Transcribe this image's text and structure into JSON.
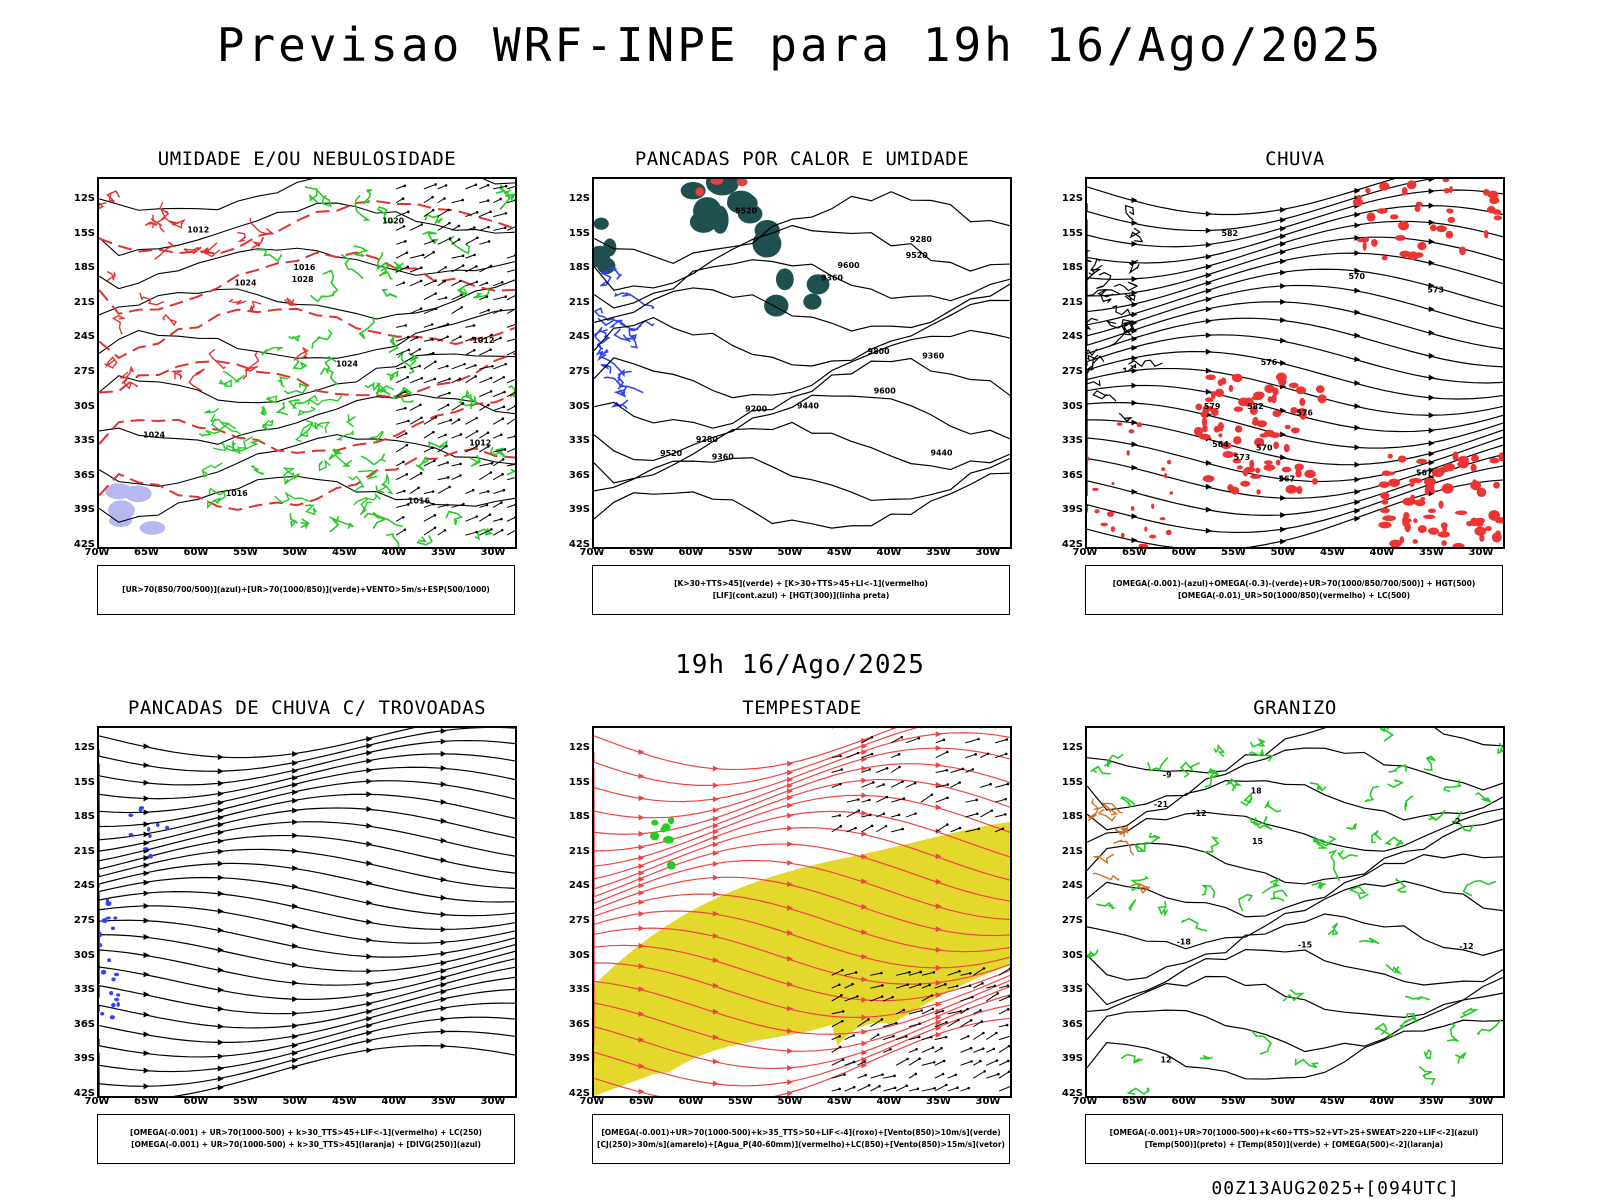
{
  "header": {
    "title": "Previsao WRF-INPE  para 19h 16/Ago/2025"
  },
  "mid_title": "19h 16/Ago/2025",
  "footer": "00Z13AUG2025+[094UTC]",
  "axes": {
    "y_labels": [
      "12S",
      "15S",
      "18S",
      "21S",
      "24S",
      "27S",
      "30S",
      "33S",
      "36S",
      "39S",
      "42S"
    ],
    "x_labels": [
      "70W",
      "65W",
      "60W",
      "55W",
      "50W",
      "45W",
      "40W",
      "35W",
      "30W"
    ]
  },
  "panels": [
    {
      "id": "p1",
      "title": "UMIDADE E/OU NEBULOSIDADE",
      "legend": [
        "[UR>70(850/700/500)](azul)+[UR>70(1000/850)](verde)+VENTO>5m/s+ESP(500/1000)"
      ],
      "contour_labels": [
        "1016",
        "1012",
        "1012",
        "1012",
        "1016",
        "1020",
        "1024",
        "1024",
        "1028",
        "1024",
        "1016"
      ]
    },
    {
      "id": "p2",
      "title": "PANCADAS POR CALOR E UMIDADE",
      "legend": [
        "[K>30+TTS>45](verde) + [K>30+TTS>45+LI<-1](vermelho)",
        "[LIF](cont.azul) + [HGT(300)](linha preta)"
      ],
      "contour_labels": [
        "9520",
        "9600",
        "9600",
        "9800",
        "9440",
        "9520",
        "9520",
        "9440",
        "9360",
        "9360",
        "9360",
        "9280",
        "9280",
        "9200"
      ]
    },
    {
      "id": "p3",
      "title": "CHUVA",
      "legend": [
        "[OMEGA(-0.001)-(azul)+OMEGA(-0.3)-(verde)+UR>70(1000/850/700/500)] + HGT(500)",
        "[OMEGA(-0.01)_UR>50(1000/850)(vermelho) + LC(500)"
      ],
      "contour_labels": [
        "582",
        "582",
        "579",
        "576",
        "576",
        "573",
        "573",
        "570",
        "570",
        "567",
        "564",
        "567"
      ]
    },
    {
      "id": "p4",
      "title": "PANCADAS DE CHUVA C/ TROVOADAS",
      "legend": [
        "[OMEGA(-0.001) + UR>70(1000-500) + k>30_TTS>45+LIF<-1](vermelho) + LC(250)",
        "[OMEGA(-0.001) + UR>70(1000-500) + k>30_TTS>45](laranja) + [DIVG(250)](azul)"
      ],
      "contour_labels": []
    },
    {
      "id": "p5",
      "title": "TEMPESTADE",
      "legend": [
        "[OMEGA(-0.001)+UR>70(1000-500)+k>35_TTS>50+LIF<-4](roxo)+[Vento(850)>10m/s](verde)",
        "[CJ(250)>30m/s](amarelo)+[Agua_P(40-60mm)](vermelho)+LC(850)+[Vento(850)>15m/s](vetor)"
      ],
      "contour_labels": []
    },
    {
      "id": "p6",
      "title": "GRANIZO",
      "legend": [
        "[OMEGA(-0.001)+UR>70(1000-500)+k<60+TTS>52+VT>25+SWEAT>220+LIF<-2](azul)",
        "[Temp(500)](preto) + [Temp(850)](verde) + [OMEGA(500)<-2](laranja)"
      ],
      "contour_labels": [
        "-12",
        "-12",
        "12",
        "-15",
        "15",
        "-18",
        "18",
        "-21",
        "-2",
        "-9"
      ]
    }
  ],
  "colors": {
    "coast": "#000000",
    "wet_green": "#22cc22",
    "red": "#ee3333",
    "blue": "#3344ee",
    "teal": "#1f4f4f",
    "yellow": "#e5d82c",
    "lavender": "#b8b8f0",
    "orange": "#d07020"
  }
}
